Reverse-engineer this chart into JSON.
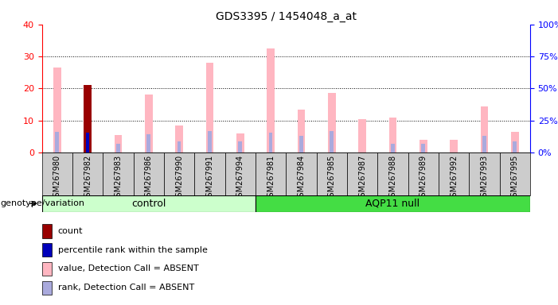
{
  "title": "GDS3395 / 1454048_a_at",
  "samples": [
    "GSM267980",
    "GSM267982",
    "GSM267983",
    "GSM267986",
    "GSM267990",
    "GSM267991",
    "GSM267994",
    "GSM267981",
    "GSM267984",
    "GSM267985",
    "GSM267987",
    "GSM267988",
    "GSM267989",
    "GSM267992",
    "GSM267993",
    "GSM267995"
  ],
  "n_control": 7,
  "n_aqp11": 9,
  "pink_values": [
    26.5,
    21.0,
    5.5,
    18.0,
    8.5,
    28.0,
    6.0,
    32.5,
    13.5,
    18.5,
    10.5,
    11.0,
    4.0,
    4.0,
    14.5,
    6.5
  ],
  "blue_ranks": [
    16.0,
    15.5,
    7.0,
    14.0,
    8.5,
    17.0,
    8.5,
    15.5,
    13.0,
    16.5,
    0.0,
    7.0,
    7.0,
    0.0,
    13.0,
    8.5
  ],
  "red_count": [
    0,
    21,
    0,
    0,
    0,
    0,
    0,
    0,
    0,
    0,
    0,
    0,
    0,
    0,
    0,
    0
  ],
  "navy_rank": [
    0,
    15.5,
    0,
    0,
    0,
    0,
    0,
    0,
    0,
    0,
    0,
    0,
    0,
    0,
    0,
    0
  ],
  "ylim_left": [
    0,
    40
  ],
  "ylim_right": [
    0,
    100
  ],
  "yticks_left": [
    0,
    10,
    20,
    30,
    40
  ],
  "yticks_right": [
    0,
    25,
    50,
    75,
    100
  ],
  "ytick_labels_right": [
    "0%",
    "25%",
    "50%",
    "75%",
    "100%"
  ],
  "color_pink": "#FFB6C1",
  "color_blue_rank": "#AAAADD",
  "color_red": "#990000",
  "color_navy": "#0000BB",
  "color_control_bg": "#CCFFCC",
  "color_aqp11_bg": "#44DD44",
  "color_sample_bg": "#CCCCCC",
  "bar_width": 0.25,
  "rank_bar_width": 0.12,
  "legend_items": [
    {
      "color": "#990000",
      "label": "count"
    },
    {
      "color": "#0000BB",
      "label": "percentile rank within the sample"
    },
    {
      "color": "#FFB6C1",
      "label": "value, Detection Call = ABSENT"
    },
    {
      "color": "#AAAADD",
      "label": "rank, Detection Call = ABSENT"
    }
  ]
}
